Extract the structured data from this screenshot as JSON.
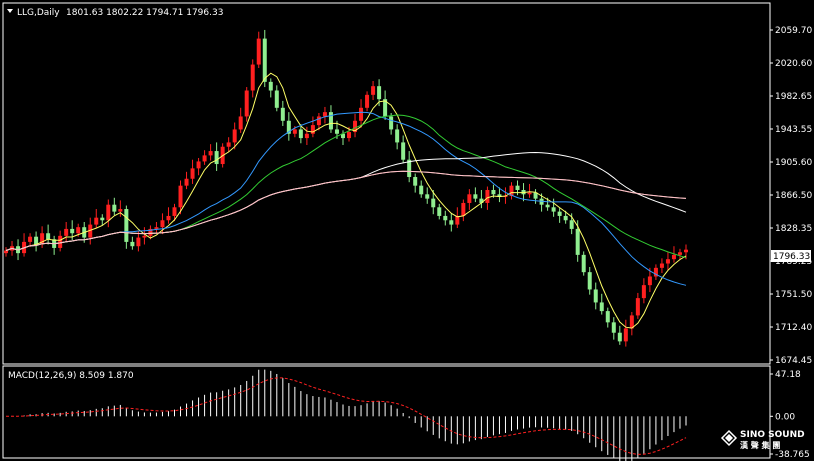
{
  "header": {
    "title": "LLG,Daily",
    "ohlc": "1801.63 1802.22 1794.71 1796.33"
  },
  "price_panel": {
    "ticks": [
      "2059.70",
      "2020.60",
      "1982.65",
      "1943.55",
      "1905.60",
      "1866.50",
      "1828.35",
      "1789.25",
      "1751.50",
      "1712.40",
      "1674.45"
    ],
    "current_price": "1796.33"
  },
  "macd_panel": {
    "label": "MACD(12,26,9) 8.509 1.870",
    "ticks": [
      "47.18",
      "0.00",
      "-38.765"
    ]
  },
  "logo": {
    "en": "SINO SOUND",
    "cn": "漢 聲 集 團"
  },
  "colors": {
    "background": "#000000",
    "up_candle": "#ff2020",
    "down_candle": "#90ee90",
    "ma_yellow": "#ffff66",
    "ma_blue": "#3399ff",
    "ma_green": "#33cc33",
    "ma_white": "#ffffff",
    "ma_tan": "#d2b48c",
    "ma_pink": "#ffc0cb",
    "macd_hist": "#ffffff",
    "macd_signal": "#ff2020"
  },
  "chart_data": {
    "type": "candlestick",
    "symbol": "LLG",
    "period": "Daily",
    "ylim": [
      1665,
      2080
    ],
    "closes": [
      1795,
      1800,
      1792,
      1805,
      1811,
      1802,
      1815,
      1808,
      1798,
      1812,
      1820,
      1815,
      1822,
      1810,
      1825,
      1833,
      1830,
      1848,
      1840,
      1843,
      1805,
      1800,
      1810,
      1812,
      1820,
      1822,
      1830,
      1835,
      1845,
      1870,
      1878,
      1890,
      1898,
      1905,
      1910,
      1895,
      1915,
      1920,
      1935,
      1950,
      1980,
      2010,
      2040,
      1990,
      1980,
      1960,
      1945,
      1930,
      1935,
      1925,
      1930,
      1940,
      1950,
      1955,
      1935,
      1930,
      1925,
      1932,
      1945,
      1960,
      1975,
      1985,
      1970,
      1950,
      1935,
      1920,
      1900,
      1880,
      1870,
      1860,
      1855,
      1845,
      1835,
      1830,
      1825,
      1835,
      1850,
      1860,
      1855,
      1850,
      1865,
      1860,
      1857,
      1858,
      1870,
      1865,
      1860,
      1862,
      1855,
      1848,
      1845,
      1840,
      1835,
      1830,
      1820,
      1790,
      1770,
      1750,
      1735,
      1725,
      1712,
      1700,
      1690,
      1705,
      1720,
      1740,
      1755,
      1765,
      1775,
      1780,
      1785,
      1790,
      1793,
      1796
    ],
    "macd": {
      "value": 8.509,
      "signal": 1.87,
      "ylim": [
        -38.765,
        47.18
      ]
    }
  }
}
